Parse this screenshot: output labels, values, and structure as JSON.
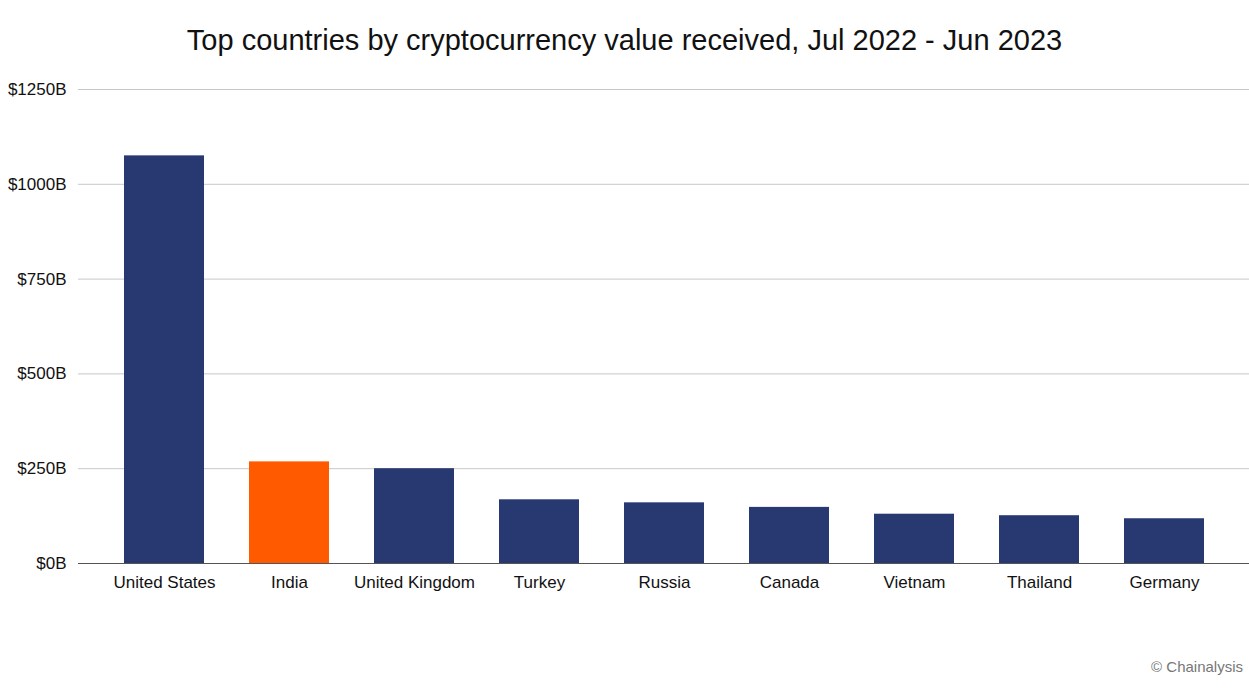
{
  "chart_data": {
    "type": "bar",
    "title": "Top countries by cryptocurrency value received, Jul 2022 - Jun 2023",
    "caption": "© Chainalysis",
    "categories": [
      "United States",
      "India",
      "United Kingdom",
      "Turkey",
      "Russia",
      "Canada",
      "Vietnam",
      "Thailand",
      "Germany"
    ],
    "values": [
      1075,
      268,
      250,
      168,
      160,
      148,
      130,
      126,
      118
    ],
    "colors": [
      "#283870",
      "#ff5a00",
      "#283870",
      "#283870",
      "#283870",
      "#283870",
      "#283870",
      "#283870",
      "#283870"
    ],
    "ylim": [
      0,
      1250
    ],
    "yticks": [
      {
        "value": 0,
        "label": "$0B"
      },
      {
        "value": 250,
        "label": "$250B"
      },
      {
        "value": 500,
        "label": "$500B"
      },
      {
        "value": 750,
        "label": "$750B"
      },
      {
        "value": 1000,
        "label": "$1000B"
      },
      {
        "value": 1250,
        "label": "$1250B"
      }
    ],
    "grid": true
  }
}
